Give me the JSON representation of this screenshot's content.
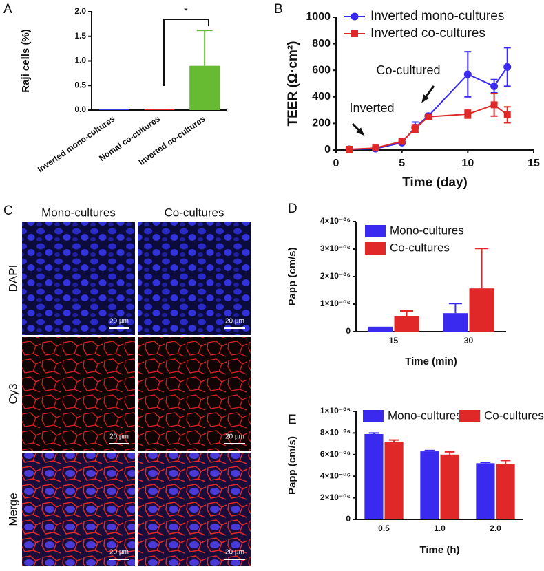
{
  "chart_data": [
    {
      "type": "bar",
      "panel": "A",
      "ylabel": "Raji cells (%)",
      "categories": [
        "Inverted mono-cultures",
        "Nomal co-cultures",
        "Inverted co-cultures"
      ],
      "series": [
        {
          "name": "Raji cells",
          "color": "#66bb33",
          "values": [
            0.01,
            0.01,
            0.9
          ],
          "errors": [
            0,
            0,
            0.72
          ],
          "colors": [
            "#3a3ae8",
            "#e02828",
            "#66bb33"
          ]
        }
      ],
      "ylim": [
        0,
        2
      ],
      "yticks": [
        {
          "value": 0,
          "label": "0.0"
        },
        {
          "value": 0.5,
          "label": "0.5"
        },
        {
          "value": 1,
          "label": "1.0"
        },
        {
          "value": 1.5,
          "label": "1.5"
        },
        {
          "value": 2,
          "label": "2.0"
        }
      ],
      "annotations": [
        "*"
      ]
    },
    {
      "type": "line",
      "panel": "B",
      "ylabel": "TEER (Ω·cm²)",
      "xlabel": "Time (day)",
      "x": [
        1,
        3,
        5,
        6,
        7,
        10,
        12,
        13
      ],
      "series": [
        {
          "name": "Inverted mono-cultures",
          "color": "#3a2af0",
          "marker": "circle",
          "values": [
            5,
            10,
            55,
            170,
            255,
            570,
            480,
            625
          ],
          "errors": [
            3,
            5,
            10,
            40,
            15,
            170,
            50,
            145
          ]
        },
        {
          "name": "Inverted co-cultures",
          "color": "#e02828",
          "marker": "square",
          "values": [
            5,
            15,
            65,
            160,
            250,
            270,
            340,
            265
          ],
          "errors": [
            3,
            5,
            10,
            30,
            15,
            30,
            85,
            60
          ]
        }
      ],
      "xlim": [
        0,
        15
      ],
      "xticks": [
        0,
        5,
        10,
        15
      ],
      "ylim": [
        0,
        1000
      ],
      "yticks": [
        0,
        200,
        400,
        600,
        800,
        1000
      ],
      "legend": "upper left",
      "annotations": [
        "Inverted",
        "Co-cultured"
      ]
    },
    {
      "type": "bar",
      "panel": "D",
      "ylabel": "Papp (cm/s)",
      "xlabel": "Time (min)",
      "categories": [
        "15",
        "30"
      ],
      "series": [
        {
          "name": "Mono-cultures",
          "color": "#3a2af0",
          "values": [
            1.8e-07,
            6.7e-07
          ],
          "errors": [
            0,
            3.5e-07
          ]
        },
        {
          "name": "Co-cultures",
          "color": "#e02828",
          "values": [
            5.5e-07,
            1.57e-06
          ],
          "errors": [
            2e-07,
            1.45e-06
          ]
        }
      ],
      "ylim": [
        0,
        4e-06
      ],
      "yticks": [
        0,
        {
          "value": 1e-06,
          "label": "1×10⁻⁰⁶"
        },
        {
          "value": 2e-06,
          "label": "2×10⁻⁰⁶"
        },
        {
          "value": 3e-06,
          "label": "3×10⁻⁰⁶"
        },
        {
          "value": 4e-06,
          "label": "4×10⁻⁰⁶"
        }
      ],
      "legend": "upper left"
    },
    {
      "type": "bar",
      "panel": "E",
      "ylabel": "Papp (cm/s)",
      "xlabel": "Time (h)",
      "categories": [
        "0.5",
        "1.0",
        "2.0"
      ],
      "series": [
        {
          "name": "Mono-cultures",
          "color": "#3a2af0",
          "values": [
            7.9e-06,
            6.3e-06,
            5.2e-06
          ],
          "errors": [
            1e-07,
            8e-08,
            8e-08
          ]
        },
        {
          "name": "Co-cultures",
          "color": "#e02828",
          "values": [
            7.2e-06,
            6e-06,
            5.15e-06
          ],
          "errors": [
            1.5e-07,
            2.5e-07,
            3e-07
          ]
        }
      ],
      "ylim": [
        0,
        1e-05
      ],
      "yticks": [
        0,
        {
          "value": 2e-06,
          "label": "2×10⁻⁰⁶"
        },
        {
          "value": 4e-06,
          "label": "4×10⁻⁰⁶"
        },
        {
          "value": 6e-06,
          "label": "6×10⁻⁰⁶"
        },
        {
          "value": 8e-06,
          "label": "8×10⁻⁰⁶"
        },
        {
          "value": 1e-05,
          "label": "1×10⁻⁰⁵"
        }
      ],
      "legend": "upper center"
    }
  ],
  "micrographs": {
    "panel": "C",
    "columns": [
      "Mono-cultures",
      "Co-cultures"
    ],
    "rows": [
      "DAPI",
      "Cy3",
      "Merge"
    ],
    "scale_bar": "20 µm"
  }
}
